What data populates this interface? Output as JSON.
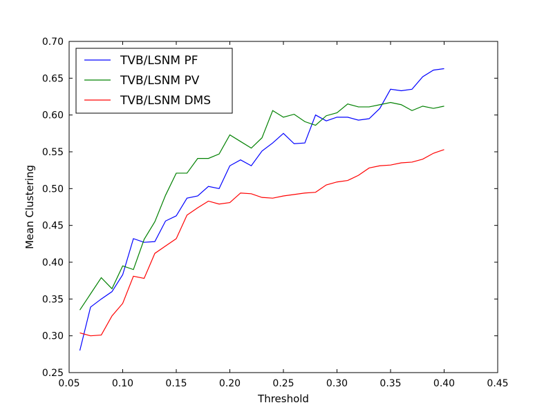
{
  "chart_data": {
    "type": "line",
    "title": "",
    "xlabel": "Threshold",
    "ylabel": "Mean Clustering",
    "xlim": [
      0.05,
      0.45
    ],
    "ylim": [
      0.25,
      0.7
    ],
    "x_ticks": [
      0.05,
      0.1,
      0.15,
      0.2,
      0.25,
      0.3,
      0.35,
      0.4,
      0.45
    ],
    "x_tick_labels": [
      "0.05",
      "0.10",
      "0.15",
      "0.20",
      "0.25",
      "0.30",
      "0.35",
      "0.40",
      "0.45"
    ],
    "y_ticks": [
      0.25,
      0.3,
      0.35,
      0.4,
      0.45,
      0.5,
      0.55,
      0.6,
      0.65,
      0.7
    ],
    "y_tick_labels": [
      "0.25",
      "0.30",
      "0.35",
      "0.40",
      "0.45",
      "0.50",
      "0.55",
      "0.60",
      "0.65",
      "0.70"
    ],
    "grid": false,
    "legend_position": "top-left",
    "x": [
      0.06,
      0.07,
      0.08,
      0.09,
      0.1,
      0.11,
      0.12,
      0.13,
      0.14,
      0.15,
      0.16,
      0.17,
      0.18,
      0.19,
      0.2,
      0.21,
      0.22,
      0.23,
      0.24,
      0.25,
      0.26,
      0.27,
      0.28,
      0.29,
      0.3,
      0.31,
      0.32,
      0.33,
      0.34,
      0.35,
      0.36,
      0.37,
      0.38,
      0.39,
      0.4
    ],
    "series": [
      {
        "name": "TVB/LSNM PF",
        "color": "#0000ff",
        "values": [
          0.28,
          0.339,
          0.35,
          0.36,
          0.383,
          0.432,
          0.427,
          0.428,
          0.456,
          0.463,
          0.487,
          0.49,
          0.503,
          0.5,
          0.531,
          0.539,
          0.531,
          0.551,
          0.562,
          0.575,
          0.561,
          0.562,
          0.6,
          0.592,
          0.597,
          0.597,
          0.593,
          0.595,
          0.609,
          0.635,
          0.633,
          0.635,
          0.652,
          0.661,
          0.663
        ]
      },
      {
        "name": "TVB/LSNM PV",
        "color": "#008000",
        "values": [
          0.335,
          0.357,
          0.379,
          0.364,
          0.395,
          0.39,
          0.431,
          0.455,
          0.491,
          0.521,
          0.521,
          0.541,
          0.541,
          0.547,
          0.573,
          0.564,
          0.555,
          0.569,
          0.606,
          0.597,
          0.601,
          0.591,
          0.586,
          0.599,
          0.603,
          0.615,
          0.611,
          0.611,
          0.614,
          0.617,
          0.614,
          0.606,
          0.612,
          0.609,
          0.612
        ]
      },
      {
        "name": "TVB/LSNM DMS",
        "color": "#ff0000",
        "values": [
          0.304,
          0.3,
          0.301,
          0.327,
          0.344,
          0.381,
          0.378,
          0.412,
          0.422,
          0.432,
          0.464,
          0.474,
          0.483,
          0.479,
          0.481,
          0.494,
          0.493,
          0.488,
          0.487,
          0.49,
          0.492,
          0.494,
          0.495,
          0.505,
          0.509,
          0.511,
          0.518,
          0.528,
          0.531,
          0.532,
          0.535,
          0.536,
          0.54,
          0.548,
          0.553
        ]
      }
    ]
  }
}
